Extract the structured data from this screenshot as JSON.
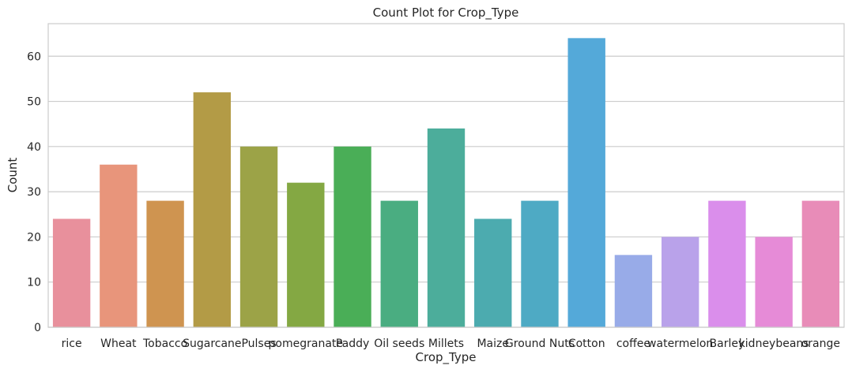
{
  "chart_data": {
    "type": "bar",
    "title": "Count Plot for Crop_Type",
    "xlabel": "Crop_Type",
    "ylabel": "Count",
    "ylim": [
      0,
      67.2
    ],
    "yticks": [
      0,
      10,
      20,
      30,
      40,
      50,
      60
    ],
    "grid": "horizontal",
    "categories": [
      "rice",
      "Wheat",
      "Tobacco",
      "Sugarcane",
      "Pulses",
      "pomegranate",
      "Paddy",
      "Oil seeds",
      "Millets",
      "Maize",
      "Ground Nuts",
      "Cotton",
      "coffee",
      "watermelon",
      "Barley",
      "kidneybeans",
      "orange"
    ],
    "values": [
      24,
      36,
      28,
      52,
      40,
      32,
      40,
      28,
      44,
      24,
      28,
      64,
      16,
      20,
      28,
      20,
      28
    ],
    "colors": [
      "#e8909c",
      "#e8957b",
      "#cf9450",
      "#b39b46",
      "#9ca347",
      "#84a843",
      "#4aae57",
      "#4aad81",
      "#4cad9b",
      "#4cabaf",
      "#4eaac4",
      "#54a9d9",
      "#98abe8",
      "#b9a2ea",
      "#da8eeb",
      "#e68bd7",
      "#e88cb8"
    ]
  }
}
